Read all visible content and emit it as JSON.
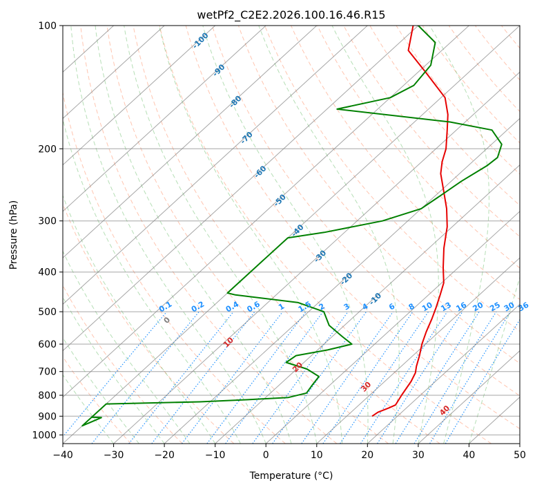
{
  "chart_data": {
    "type": "line",
    "title": "wetPf2_C2E2.2026.100.16.46.R15",
    "xlabel": "Temperature (°C)",
    "ylabel": "Pressure (hPa)",
    "xlim": [
      -40,
      50
    ],
    "ylim": [
      1050,
      100
    ],
    "x_ticks": [
      -40,
      -30,
      -20,
      -10,
      0,
      10,
      20,
      30,
      40,
      50
    ],
    "x_tick_labels": [
      "−40",
      "−30",
      "−20",
      "−10",
      "0",
      "10",
      "20",
      "30",
      "40",
      "50"
    ],
    "y_ticks": [
      100,
      200,
      300,
      400,
      500,
      600,
      700,
      800,
      900,
      1000
    ],
    "y_tick_labels": [
      "100",
      "200",
      "300",
      "400",
      "500",
      "600",
      "700",
      "800",
      "900",
      "1000"
    ],
    "grid": true,
    "colors": {
      "temperature": "#e60000",
      "dewpoint": "#008000",
      "dry_adiabat": "#ff7f50",
      "moist_adiabat": "#2ca02c",
      "mixing_ratio": "#1e90ff",
      "isotherm": "#808080",
      "frame": "#000000"
    },
    "series": [
      {
        "name": "Temperature",
        "points": [
          [
            15.0,
            900
          ],
          [
            15.3,
            880
          ],
          [
            16.5,
            860
          ],
          [
            17.2,
            845
          ],
          [
            16.3,
            800
          ],
          [
            15.2,
            740
          ],
          [
            14.2,
            705
          ],
          [
            13.0,
            680
          ],
          [
            11.3,
            640
          ],
          [
            9.3,
            600
          ],
          [
            7.5,
            560
          ],
          [
            5.8,
            520
          ],
          [
            4.3,
            490
          ],
          [
            2.3,
            455
          ],
          [
            0.4,
            425
          ],
          [
            -3.0,
            390
          ],
          [
            -7.0,
            350
          ],
          [
            -11.0,
            310
          ],
          [
            -15.0,
            280
          ],
          [
            -20.0,
            250
          ],
          [
            -23.7,
            230
          ],
          [
            -26.0,
            215
          ],
          [
            -28.0,
            200
          ],
          [
            -31.8,
            180
          ],
          [
            -35.0,
            165
          ],
          [
            -39.2,
            150
          ],
          [
            -48.5,
            130
          ],
          [
            -56.6,
            115
          ],
          [
            -61.0,
            100
          ]
        ]
      },
      {
        "name": "Dewpoint",
        "points": [
          [
            -40.0,
            905
          ],
          [
            -38.0,
            907
          ],
          [
            -40.0,
            950
          ],
          [
            -40.0,
            840
          ],
          [
            -22.0,
            830
          ],
          [
            -13.0,
            820
          ],
          [
            -5.5,
            810
          ],
          [
            -2.9,
            790
          ],
          [
            -3.4,
            760
          ],
          [
            -4.0,
            720
          ],
          [
            -8.0,
            690
          ],
          [
            -13.5,
            665
          ],
          [
            -13.0,
            640
          ],
          [
            -8.0,
            620
          ],
          [
            -4.5,
            600
          ],
          [
            -8.0,
            575
          ],
          [
            -13.0,
            540
          ],
          [
            -17.0,
            500
          ],
          [
            -24.0,
            475
          ],
          [
            -38.0,
            455
          ],
          [
            -40.0,
            450
          ],
          [
            -40.0,
            380
          ],
          [
            -40.0,
            330
          ],
          [
            -34.0,
            320
          ],
          [
            -25.0,
            300
          ],
          [
            -20.0,
            280
          ],
          [
            -19.0,
            260
          ],
          [
            -18.0,
            240
          ],
          [
            -16.3,
            220
          ],
          [
            -16.0,
            210
          ],
          [
            -18.0,
            195
          ],
          [
            -23.0,
            180
          ],
          [
            -33.0,
            172
          ],
          [
            -58.0,
            160
          ],
          [
            -50.0,
            150
          ],
          [
            -48.0,
            140
          ],
          [
            -49.0,
            125
          ],
          [
            -53.0,
            110
          ],
          [
            -60.0,
            100
          ]
        ]
      }
    ],
    "mixing_ratio_labels": [
      "0.1",
      "0.2",
      "0.4",
      "0.6",
      "1",
      "1.5",
      "2",
      "3",
      "4",
      "6",
      "8",
      "10",
      "13",
      "16",
      "20",
      "25",
      "30",
      "36"
    ],
    "dry_adiabat_labels": [
      "0",
      "10",
      "20",
      "30",
      "40"
    ],
    "moist_adiabat_labels": [
      "-100",
      "-90",
      "-80",
      "-70",
      "-60",
      "-50",
      "-40",
      "-30",
      "-20",
      "-10"
    ]
  }
}
